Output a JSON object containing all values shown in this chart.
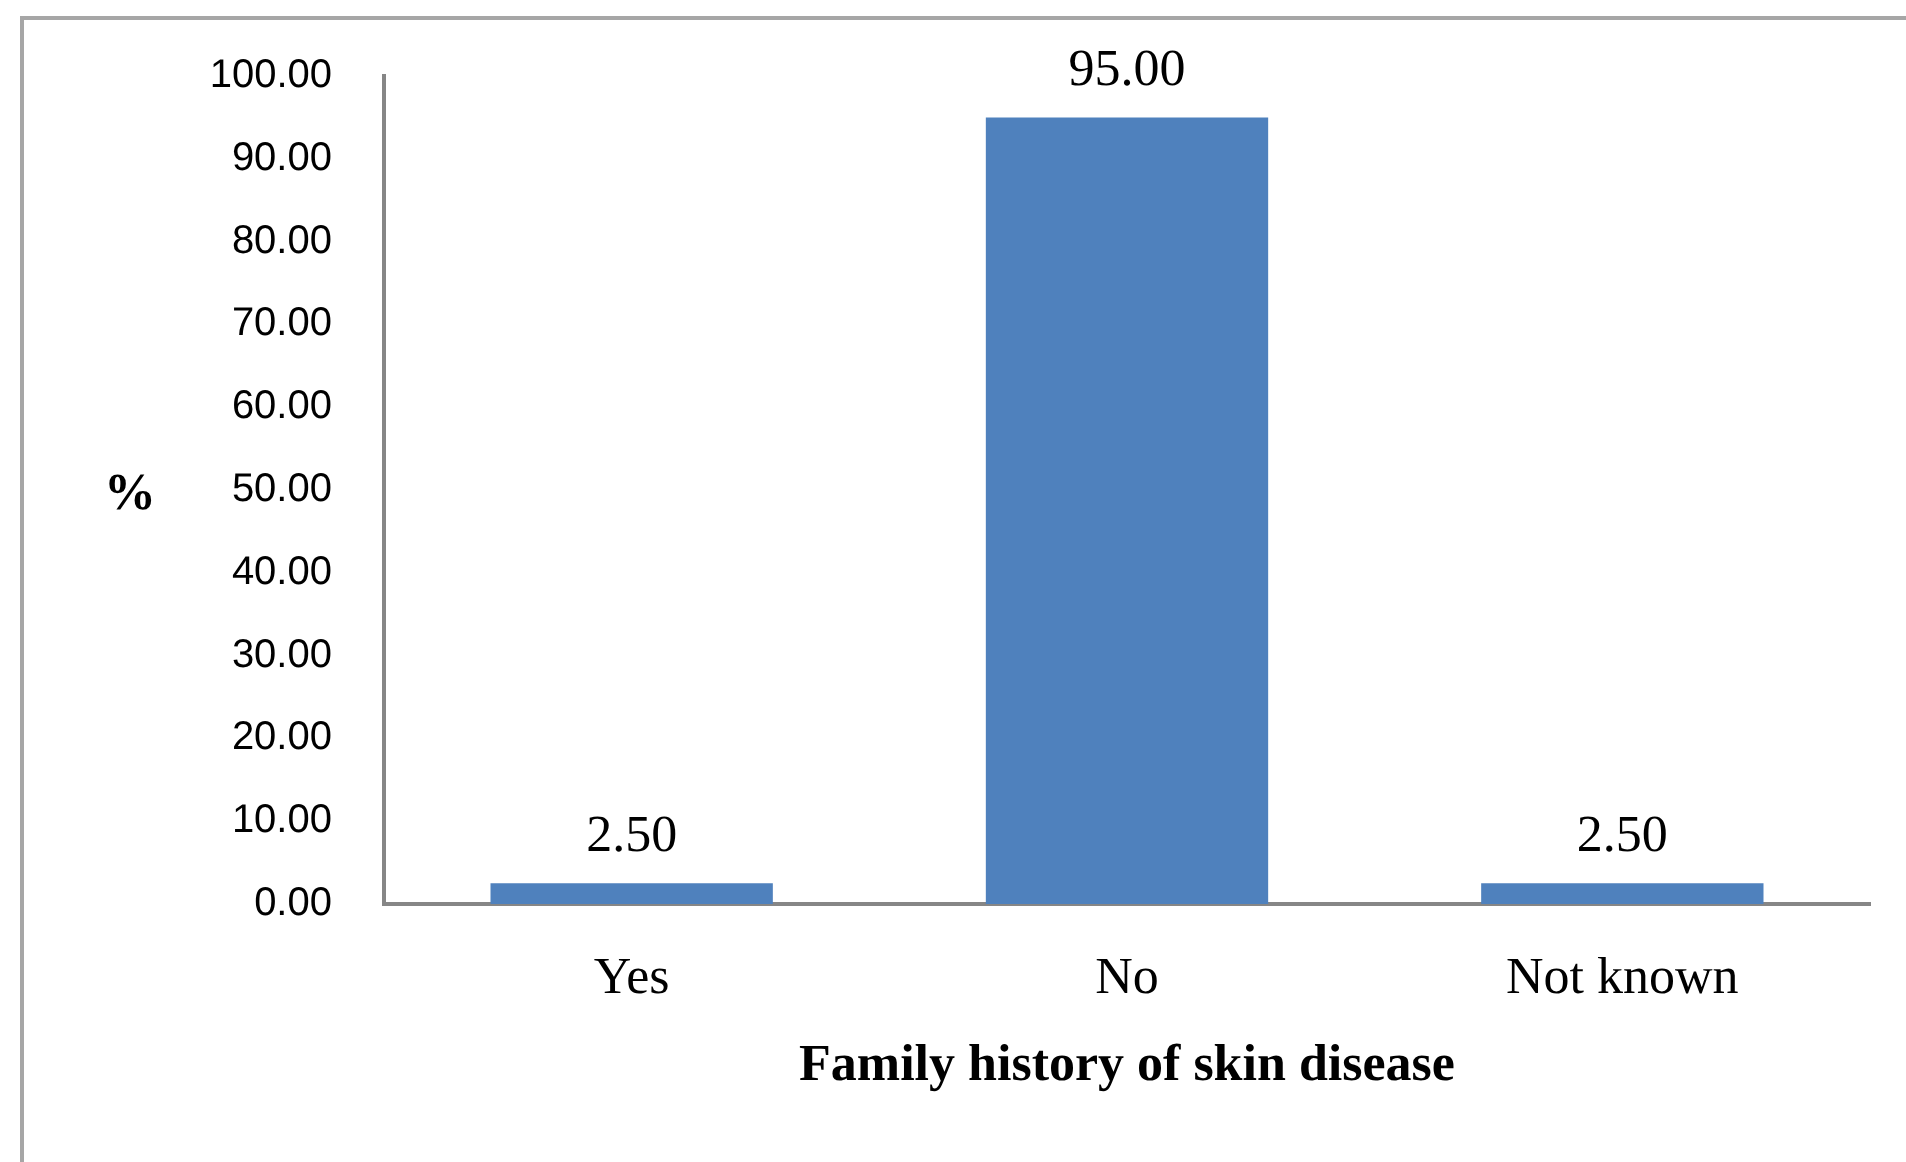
{
  "chart_data": {
    "type": "bar",
    "xlabel": "Family history of skin disease",
    "ylabel": "%",
    "categories": [
      "Yes",
      "No",
      "Not known"
    ],
    "values": [
      2.5,
      95,
      2.5
    ],
    "color": "#4f81bd",
    "value_labels": [
      "2.50",
      "95.00",
      "2.50"
    ],
    "ylim": [
      0,
      100
    ],
    "yticks": [
      {
        "value": 0,
        "label": "0.00"
      },
      {
        "value": 10,
        "label": "10.00"
      },
      {
        "value": 20,
        "label": "20.00"
      },
      {
        "value": 30,
        "label": "30.00"
      },
      {
        "value": 40,
        "label": "40.00"
      },
      {
        "value": 50,
        "label": "50.00"
      },
      {
        "value": 60,
        "label": "60.00"
      },
      {
        "value": 70,
        "label": "70.00"
      },
      {
        "value": 80,
        "label": "80.00"
      },
      {
        "value": 90,
        "label": "90.00"
      },
      {
        "value": 100,
        "label": "100.00"
      }
    ],
    "grid": false
  }
}
